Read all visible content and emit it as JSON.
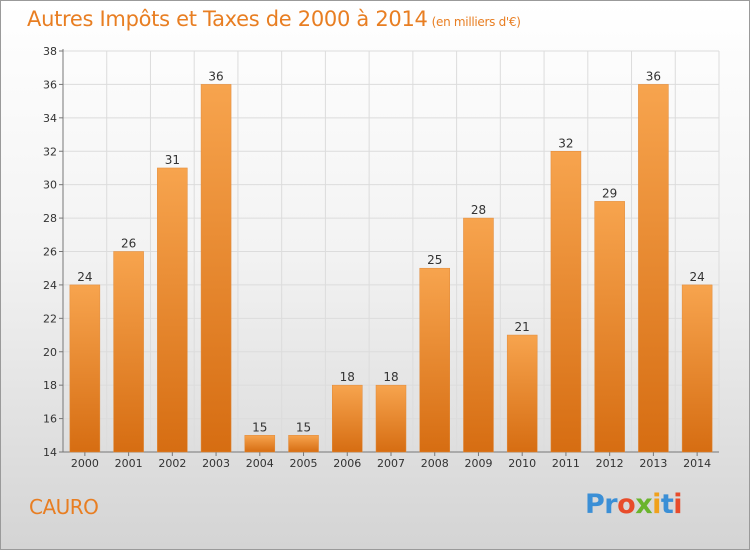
{
  "title": "Autres Impôts et Taxes de 2000 à 2014",
  "title_unit": "(en milliers d'€)",
  "city": "CAURO",
  "brand": {
    "letters": [
      "P",
      "r",
      "o",
      "x",
      "i",
      "t",
      "i"
    ],
    "colors": [
      "#3b8fd6",
      "#3b8fd6",
      "#e84c2b",
      "#6ab42d",
      "#f0a11c",
      "#3b8fd6",
      "#e84c2b"
    ]
  },
  "colors": {
    "bar_top": "#f7a44e",
    "bar_bottom": "#d66d12",
    "accent": "#e87e22"
  },
  "chart_data": {
    "type": "bar",
    "title": "Autres Impôts et Taxes de 2000 à 2014",
    "subtitle": "(en milliers d'€)",
    "xlabel": "",
    "ylabel": "",
    "categories": [
      "2000",
      "2001",
      "2002",
      "2003",
      "2004",
      "2005",
      "2006",
      "2007",
      "2008",
      "2009",
      "2010",
      "2011",
      "2012",
      "2013",
      "2014"
    ],
    "values": [
      24,
      26,
      31,
      36,
      15,
      15,
      18,
      18,
      25,
      28,
      21,
      32,
      29,
      36,
      24
    ],
    "ylim": [
      14,
      38
    ],
    "yticks": [
      14,
      16,
      18,
      20,
      22,
      24,
      26,
      28,
      30,
      32,
      34,
      36,
      38
    ],
    "grid": true,
    "legend": "none"
  }
}
